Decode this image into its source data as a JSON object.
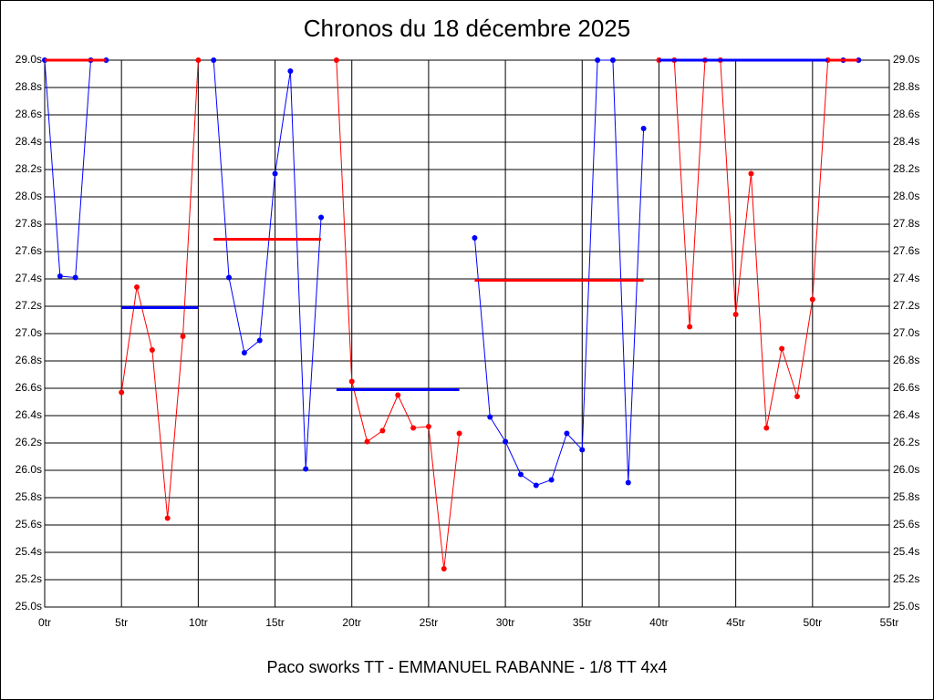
{
  "chart_data": {
    "type": "line",
    "title": "Chronos du 18 décembre 2025",
    "x_label": "Paco sworks TT - EMMANUEL RABANNE - 1/8 TT 4x4",
    "xlim": [
      0,
      55
    ],
    "ylim": [
      25.0,
      29.0
    ],
    "y2lim": [
      25.0,
      29.0
    ],
    "grid": true,
    "xticks": [
      {
        "value": 0,
        "label": "0tr"
      },
      {
        "value": 5,
        "label": "5tr"
      },
      {
        "value": 10,
        "label": "10tr"
      },
      {
        "value": 15,
        "label": "15tr"
      },
      {
        "value": 20,
        "label": "20tr"
      },
      {
        "value": 25,
        "label": "25tr"
      },
      {
        "value": 30,
        "label": "30tr"
      },
      {
        "value": 35,
        "label": "35tr"
      },
      {
        "value": 40,
        "label": "40tr"
      },
      {
        "value": 45,
        "label": "45tr"
      },
      {
        "value": 50,
        "label": "50tr"
      },
      {
        "value": 55,
        "label": "55tr"
      }
    ],
    "yticks": [
      {
        "value": 25.0,
        "label": "25.0s"
      },
      {
        "value": 25.2,
        "label": "25.2s"
      },
      {
        "value": 25.4,
        "label": "25.4s"
      },
      {
        "value": 25.6,
        "label": "25.6s"
      },
      {
        "value": 25.8,
        "label": "25.8s"
      },
      {
        "value": 26.0,
        "label": "26.0s"
      },
      {
        "value": 26.2,
        "label": "26.2s"
      },
      {
        "value": 26.4,
        "label": "26.4s"
      },
      {
        "value": 26.6,
        "label": "26.6s"
      },
      {
        "value": 26.8,
        "label": "26.8s"
      },
      {
        "value": 27.0,
        "label": "27.0s"
      },
      {
        "value": 27.2,
        "label": "27.2s"
      },
      {
        "value": 27.4,
        "label": "27.4s"
      },
      {
        "value": 27.6,
        "label": "27.6s"
      },
      {
        "value": 27.8,
        "label": "27.8s"
      },
      {
        "value": 28.0,
        "label": "28.0s"
      },
      {
        "value": 28.2,
        "label": "28.2s"
      },
      {
        "value": 28.4,
        "label": "28.4s"
      },
      {
        "value": 28.6,
        "label": "28.6s"
      },
      {
        "value": 28.8,
        "label": "28.8s"
      },
      {
        "value": 29.0,
        "label": "29.0s"
      }
    ],
    "y2ticks": [
      {
        "value": 25.0,
        "label": "25.0s"
      },
      {
        "value": 25.2,
        "label": "25.2s"
      },
      {
        "value": 25.4,
        "label": "25.4s"
      },
      {
        "value": 25.6,
        "label": "25.6s"
      },
      {
        "value": 25.8,
        "label": "25.8s"
      },
      {
        "value": 26.0,
        "label": "26.0s"
      },
      {
        "value": 26.2,
        "label": "26.2s"
      },
      {
        "value": 26.4,
        "label": "26.4s"
      },
      {
        "value": 26.6,
        "label": "26.6s"
      },
      {
        "value": 26.8,
        "label": "26.8s"
      },
      {
        "value": 27.0,
        "label": "27.0s"
      },
      {
        "value": 27.2,
        "label": "27.2s"
      },
      {
        "value": 27.4,
        "label": "27.4s"
      },
      {
        "value": 27.6,
        "label": "27.6s"
      },
      {
        "value": 27.8,
        "label": "27.8s"
      },
      {
        "value": 28.0,
        "label": "28.0s"
      },
      {
        "value": 28.2,
        "label": "28.2s"
      },
      {
        "value": 28.4,
        "label": "28.4s"
      },
      {
        "value": 28.6,
        "label": "28.6s"
      },
      {
        "value": 28.8,
        "label": "28.8s"
      },
      {
        "value": 29.0,
        "label": "29.0s"
      }
    ],
    "series": [
      {
        "color": "#0000ff",
        "markers": true,
        "x": [
          0,
          1,
          2,
          3,
          4
        ],
        "values": [
          29.0,
          27.42,
          27.41,
          29.0,
          29.0
        ]
      },
      {
        "color": "#ff0000",
        "markers": false,
        "x": [
          0,
          4
        ],
        "values": [
          29.0,
          29.0
        ]
      },
      {
        "color": "#ff0000",
        "markers": true,
        "x": [
          5,
          6,
          7,
          8,
          9,
          10
        ],
        "values": [
          26.57,
          27.34,
          26.88,
          25.65,
          26.98,
          29.0
        ]
      },
      {
        "color": "#0000ff",
        "markers": false,
        "x": [
          5,
          10
        ],
        "values": [
          27.19,
          27.19
        ]
      },
      {
        "color": "#0000ff",
        "markers": true,
        "x": [
          11,
          12,
          13,
          14,
          15,
          16,
          17,
          18
        ],
        "values": [
          29.0,
          27.41,
          26.86,
          26.95,
          28.17,
          28.92,
          26.01,
          27.85
        ]
      },
      {
        "color": "#ff0000",
        "markers": false,
        "x": [
          11,
          18
        ],
        "values": [
          27.69,
          27.69
        ]
      },
      {
        "color": "#ff0000",
        "markers": true,
        "x": [
          19,
          20,
          21,
          22,
          23,
          24,
          25,
          26,
          27
        ],
        "values": [
          29.0,
          26.65,
          26.21,
          26.29,
          26.55,
          26.31,
          26.32,
          25.28,
          26.27
        ]
      },
      {
        "color": "#0000ff",
        "markers": false,
        "x": [
          19,
          27
        ],
        "values": [
          26.59,
          26.59
        ]
      },
      {
        "color": "#0000ff",
        "markers": true,
        "x": [
          28,
          29,
          30,
          31,
          32,
          33,
          34,
          35,
          36,
          37,
          38,
          39
        ],
        "values": [
          27.7,
          26.39,
          26.21,
          25.97,
          25.89,
          25.93,
          26.27,
          26.15,
          29.0,
          29.0,
          25.91,
          28.5
        ]
      },
      {
        "color": "#ff0000",
        "markers": false,
        "x": [
          28,
          39
        ],
        "values": [
          27.39,
          27.39
        ]
      },
      {
        "color": "#ff0000",
        "markers": true,
        "x": [
          40,
          41,
          42,
          43,
          44,
          45,
          46,
          47,
          48,
          49,
          50,
          51
        ],
        "values": [
          29.0,
          29.0,
          27.05,
          29.0,
          29.0,
          27.14,
          28.17,
          26.31,
          26.89,
          26.54,
          27.25,
          29.0
        ]
      },
      {
        "color": "#0000ff",
        "markers": false,
        "x": [
          40,
          51
        ],
        "values": [
          29.0,
          29.0
        ]
      },
      {
        "color": "#0000ff",
        "markers": true,
        "x": [
          52,
          53
        ],
        "values": [
          29.0,
          29.0
        ]
      },
      {
        "color": "#ff0000",
        "markers": false,
        "x": [
          51,
          53
        ],
        "values": [
          29.0,
          29.0
        ]
      }
    ]
  }
}
